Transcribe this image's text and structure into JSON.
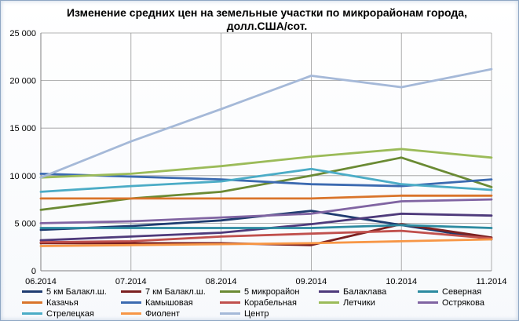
{
  "chart_data": {
    "type": "line",
    "title_line1": "Изменение средних цен на земельные участки по микрорайонам города,",
    "title_line2": "долл.США/сот.",
    "categories": [
      "06.2014",
      "07.2014",
      "08.2014",
      "09.2014",
      "10.2014",
      "11.2014"
    ],
    "ylim": [
      0,
      25000
    ],
    "y_ticks": [
      "0",
      "5 000",
      "10 000",
      "15 000",
      "20 000",
      "25 000"
    ],
    "grid": true,
    "legend_position": "bottom",
    "series": [
      {
        "name": "5 км Балакл.ш.",
        "color": "#1f3c70",
        "values": [
          4300,
          4700,
          5300,
          6300,
          4800,
          3300
        ]
      },
      {
        "name": "7 км Балакл.ш.",
        "color": "#7b2020",
        "values": [
          2900,
          2900,
          2900,
          2700,
          4900,
          3500
        ]
      },
      {
        "name": "5 микрорайон",
        "color": "#6a8a33",
        "values": [
          6400,
          7600,
          8300,
          10000,
          11900,
          8800
        ]
      },
      {
        "name": "Балаклава",
        "color": "#4e3a7b",
        "values": [
          3200,
          3600,
          4000,
          4900,
          6000,
          5800
        ]
      },
      {
        "name": "Северная",
        "color": "#2c8aa0",
        "values": [
          4500,
          4500,
          4500,
          4500,
          4800,
          4500
        ]
      },
      {
        "name": "Казачья",
        "color": "#d9742a",
        "values": [
          7600,
          7600,
          7600,
          7600,
          7900,
          7900
        ]
      },
      {
        "name": "Камышовая",
        "color": "#3b6ab0",
        "values": [
          10200,
          9900,
          9600,
          9100,
          8900,
          9600
        ]
      },
      {
        "name": "Корабельная",
        "color": "#c0504d",
        "values": [
          3000,
          3100,
          3600,
          3900,
          4200,
          3400
        ]
      },
      {
        "name": "Летчики",
        "color": "#9bbb59",
        "values": [
          9800,
          10200,
          11000,
          12000,
          12800,
          11900
        ]
      },
      {
        "name": "Острякова",
        "color": "#8064a2",
        "values": [
          5000,
          5200,
          5600,
          6000,
          7300,
          7500
        ]
      },
      {
        "name": "Стрелецкая",
        "color": "#4bacc6",
        "values": [
          8300,
          8900,
          9400,
          10700,
          9100,
          8500
        ]
      },
      {
        "name": "Фиолент",
        "color": "#f79646",
        "values": [
          2600,
          2700,
          2800,
          2900,
          3100,
          3300
        ]
      },
      {
        "name": "Центр",
        "color": "#a5b9d8",
        "values": [
          9800,
          13600,
          17000,
          20500,
          19300,
          21200
        ]
      }
    ]
  }
}
